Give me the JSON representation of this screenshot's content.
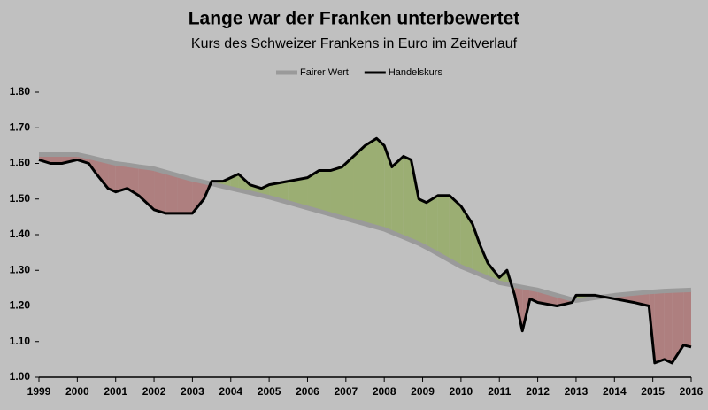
{
  "chart_data": {
    "type": "line",
    "title": "Lange war der Franken unterbewertet",
    "subtitle": "Kurs des Schweizer Frankens in Euro im Zeitverlauf",
    "x": [
      1999.0,
      1999.3,
      1999.6,
      2000.0,
      2000.3,
      2000.5,
      2000.8,
      2001.0,
      2001.3,
      2001.6,
      2001.9,
      2002.0,
      2002.3,
      2002.6,
      2002.9,
      2003.0,
      2003.3,
      2003.5,
      2003.8,
      2004.0,
      2004.2,
      2004.5,
      2004.8,
      2005.0,
      2005.5,
      2006.0,
      2006.3,
      2006.6,
      2006.9,
      2007.2,
      2007.5,
      2007.8,
      2008.0,
      2008.2,
      2008.5,
      2008.7,
      2008.9,
      2009.1,
      2009.4,
      2009.7,
      2010.0,
      2010.3,
      2010.5,
      2010.7,
      2011.0,
      2011.2,
      2011.4,
      2011.6,
      2011.8,
      2012.0,
      2012.5,
      2012.9,
      2013.0,
      2013.5,
      2014.0,
      2014.5,
      2014.9,
      2015.05,
      2015.3,
      2015.5,
      2015.8,
      2016.0
    ],
    "series": [
      {
        "name": "Fairer Wert",
        "color": "#9a9a9a",
        "values": [
          1.625,
          1.625,
          1.625,
          1.625,
          1.618,
          1.613,
          1.605,
          1.6,
          1.596,
          1.591,
          1.587,
          1.585,
          1.576,
          1.567,
          1.558,
          1.555,
          1.548,
          1.543,
          1.535,
          1.53,
          1.525,
          1.518,
          1.51,
          1.505,
          1.49,
          1.475,
          1.466,
          1.457,
          1.448,
          1.439,
          1.43,
          1.421,
          1.415,
          1.406,
          1.393,
          1.384,
          1.375,
          1.364,
          1.346,
          1.328,
          1.31,
          1.297,
          1.288,
          1.279,
          1.265,
          1.261,
          1.257,
          1.253,
          1.249,
          1.245,
          1.23,
          1.218,
          1.215,
          1.223,
          1.23,
          1.235,
          1.239,
          1.24,
          1.242,
          1.243,
          1.244,
          1.245
        ]
      },
      {
        "name": "Handelskurs",
        "color": "#000000",
        "values": [
          1.61,
          1.6,
          1.6,
          1.61,
          1.6,
          1.57,
          1.53,
          1.52,
          1.53,
          1.51,
          1.48,
          1.47,
          1.46,
          1.46,
          1.46,
          1.46,
          1.5,
          1.55,
          1.55,
          1.56,
          1.57,
          1.54,
          1.53,
          1.54,
          1.55,
          1.56,
          1.58,
          1.58,
          1.59,
          1.62,
          1.65,
          1.67,
          1.65,
          1.59,
          1.62,
          1.61,
          1.5,
          1.49,
          1.51,
          1.51,
          1.48,
          1.43,
          1.37,
          1.32,
          1.28,
          1.3,
          1.23,
          1.13,
          1.22,
          1.21,
          1.2,
          1.21,
          1.23,
          1.23,
          1.22,
          1.21,
          1.2,
          1.04,
          1.05,
          1.04,
          1.09,
          1.085
        ]
      }
    ],
    "xlim": [
      1999,
      2016
    ],
    "xticks": [
      1999,
      2000,
      2001,
      2002,
      2003,
      2004,
      2005,
      2006,
      2007,
      2008,
      2009,
      2010,
      2011,
      2012,
      2013,
      2014,
      2015,
      2016
    ],
    "ylim": [
      1.0,
      1.8
    ],
    "yticks": [
      {
        "value": 1.0,
        "label": "1.00"
      },
      {
        "value": 1.1,
        "label": "1.10"
      },
      {
        "value": 1.2,
        "label": "1.20"
      },
      {
        "value": 1.3,
        "label": "1.30"
      },
      {
        "value": 1.4,
        "label": "1.40"
      },
      {
        "value": 1.5,
        "label": "1.50"
      },
      {
        "value": 1.6,
        "label": "1.60"
      },
      {
        "value": 1.7,
        "label": "1.70"
      },
      {
        "value": 1.8,
        "label": "1.80"
      }
    ],
    "grid": false,
    "legend": "top",
    "fill_above_color": "#8fa85a",
    "fill_below_color": "#a86a6a"
  }
}
